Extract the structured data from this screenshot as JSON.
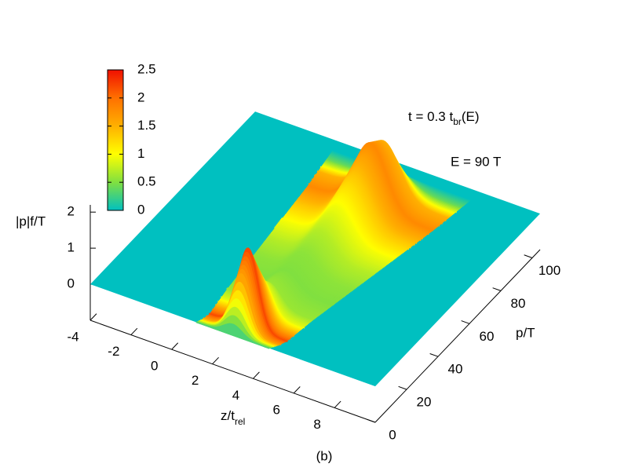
{
  "chart_data": {
    "type": "surface",
    "x_label": {
      "main": "z/t",
      "sub": "rel"
    },
    "y_label": "p/T",
    "z_label": "|p|f/T",
    "caption": "(b)",
    "annotations": [
      {
        "main": "t = 0.3 t",
        "sub": "br",
        "tail": "(E)"
      },
      {
        "main": "E = 90 T"
      }
    ],
    "xlim": [
      -4,
      10
    ],
    "xticks": [
      -4,
      -2,
      0,
      2,
      4,
      6,
      8
    ],
    "ylim": [
      0,
      105
    ],
    "yticks": [
      0,
      20,
      40,
      60,
      80,
      100
    ],
    "zlim": [
      -1,
      2.2
    ],
    "zticks": [
      0,
      1,
      2
    ],
    "cblim": [
      0,
      2.5
    ],
    "cbticks": [
      0,
      0.5,
      1,
      1.5,
      2,
      2.5
    ],
    "palette": [
      "#00c0c0",
      "#80e040",
      "#ffff00",
      "#ffb000",
      "#ff7000",
      "#f01000"
    ],
    "surface_color": "#00c0c0",
    "ridge": {
      "p": [
        0,
        3,
        6,
        10,
        15,
        20,
        30,
        40,
        50,
        60,
        70,
        80,
        88,
        95,
        100
      ],
      "z": [
        3.0,
        3.2,
        3.3,
        3.3,
        3.3,
        3.3,
        3.35,
        3.4,
        3.45,
        3.5,
        3.55,
        3.6,
        3.6,
        3.6,
        3.6
      ],
      "height": [
        0.3,
        1.6,
        2.2,
        1.6,
        0.9,
        0.6,
        0.5,
        0.55,
        0.7,
        0.95,
        1.35,
        1.8,
        1.5,
        0.4,
        0
      ]
    }
  }
}
